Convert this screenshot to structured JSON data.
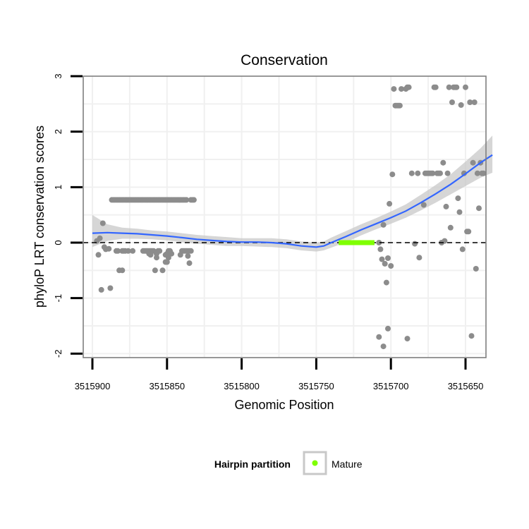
{
  "chart_data": {
    "type": "scatter",
    "title": "Conservation",
    "xlabel": "Genomic Position",
    "ylabel": "phyloP LRT conservation scores",
    "x_reversed": true,
    "xlim": [
      3515905,
      3515642
    ],
    "ylim": [
      -2.05,
      3.0
    ],
    "x_ticks": [
      3515900,
      3515850,
      3515800,
      3515750,
      3515700,
      3515650
    ],
    "y_ticks": [
      -2,
      -1,
      0,
      1,
      2,
      3
    ],
    "grid": true,
    "reference_line": {
      "y": 0,
      "style": "dashed",
      "color": "#000000"
    },
    "colors": {
      "points": "#8c8c8c",
      "smooth_line": "#3366ff",
      "confidence_band": "#c8c8c8",
      "mature": "#7fff00",
      "panel_border": "#7f7f7f",
      "grid": "#f0f0f0"
    },
    "series": [
      {
        "name": "",
        "kind": "points",
        "points": [
          [
            3515897,
            0.03
          ],
          [
            3515896,
            -0.22
          ],
          [
            3515895,
            0.08
          ],
          [
            3515894,
            -0.85
          ],
          [
            3515893,
            0.35
          ],
          [
            3515892,
            -0.08
          ],
          [
            3515891,
            -0.12
          ],
          [
            3515889,
            -0.11
          ],
          [
            3515888,
            -0.82
          ],
          [
            3515887,
            0.77
          ],
          [
            3515886,
            0.77
          ],
          [
            3515885,
            0.77
          ],
          [
            3515884,
            0.77
          ],
          [
            3515883,
            0.77
          ],
          [
            3515882,
            0.77
          ],
          [
            3515881,
            0.77
          ],
          [
            3515880,
            0.77
          ],
          [
            3515879,
            0.77
          ],
          [
            3515878,
            0.77
          ],
          [
            3515877,
            0.77
          ],
          [
            3515876,
            0.77
          ],
          [
            3515875,
            0.77
          ],
          [
            3515874,
            0.77
          ],
          [
            3515873,
            0.77
          ],
          [
            3515872,
            0.77
          ],
          [
            3515871,
            0.77
          ],
          [
            3515870,
            0.77
          ],
          [
            3515869,
            0.77
          ],
          [
            3515868,
            0.77
          ],
          [
            3515867,
            0.77
          ],
          [
            3515866,
            0.77
          ],
          [
            3515865,
            0.77
          ],
          [
            3515864,
            0.77
          ],
          [
            3515863,
            0.77
          ],
          [
            3515862,
            0.77
          ],
          [
            3515861,
            0.77
          ],
          [
            3515860,
            0.77
          ],
          [
            3515859,
            0.77
          ],
          [
            3515858,
            0.77
          ],
          [
            3515857,
            0.77
          ],
          [
            3515856,
            0.77
          ],
          [
            3515855,
            0.77
          ],
          [
            3515854,
            0.77
          ],
          [
            3515853,
            0.77
          ],
          [
            3515852,
            0.77
          ],
          [
            3515851,
            0.77
          ],
          [
            3515850,
            0.77
          ],
          [
            3515849,
            0.77
          ],
          [
            3515848,
            0.77
          ],
          [
            3515847,
            0.77
          ],
          [
            3515846,
            0.77
          ],
          [
            3515845,
            0.77
          ],
          [
            3515844,
            0.77
          ],
          [
            3515843,
            0.77
          ],
          [
            3515842,
            0.77
          ],
          [
            3515841,
            0.77
          ],
          [
            3515840,
            0.77
          ],
          [
            3515839,
            0.77
          ],
          [
            3515838,
            0.77
          ],
          [
            3515837,
            0.77
          ],
          [
            3515834,
            0.77
          ],
          [
            3515833,
            0.77
          ],
          [
            3515832,
            0.77
          ],
          [
            3515884,
            -0.15
          ],
          [
            3515883,
            -0.15
          ],
          [
            3515880,
            -0.15
          ],
          [
            3515879,
            -0.15
          ],
          [
            3515878,
            -0.15
          ],
          [
            3515876,
            -0.15
          ],
          [
            3515873,
            -0.15
          ],
          [
            3515866,
            -0.15
          ],
          [
            3515865,
            -0.15
          ],
          [
            3515864,
            -0.15
          ],
          [
            3515863,
            -0.15
          ],
          [
            3515862,
            -0.15
          ],
          [
            3515861,
            -0.15
          ],
          [
            3515860,
            -0.15
          ],
          [
            3515859,
            -0.15
          ],
          [
            3515856,
            -0.15
          ],
          [
            3515855,
            -0.15
          ],
          [
            3515849,
            -0.15
          ],
          [
            3515848,
            -0.15
          ],
          [
            3515840,
            -0.15
          ],
          [
            3515839,
            -0.15
          ],
          [
            3515838,
            -0.15
          ],
          [
            3515837,
            -0.15
          ],
          [
            3515836,
            -0.15
          ],
          [
            3515835,
            -0.15
          ],
          [
            3515834,
            -0.15
          ],
          [
            3515862,
            -0.2
          ],
          [
            3515861,
            -0.22
          ],
          [
            3515857,
            -0.2
          ],
          [
            3515851,
            -0.22
          ],
          [
            3515850,
            -0.2
          ],
          [
            3515847,
            -0.2
          ],
          [
            3515841,
            -0.22
          ],
          [
            3515849,
            -0.27
          ],
          [
            3515836,
            -0.24
          ],
          [
            3515857,
            -0.27
          ],
          [
            3515851,
            -0.35
          ],
          [
            3515850,
            -0.35
          ],
          [
            3515835,
            -0.37
          ],
          [
            3515882,
            -0.5
          ],
          [
            3515880,
            -0.5
          ],
          [
            3515858,
            -0.5
          ],
          [
            3515853,
            -0.5
          ],
          [
            3515708,
            0.0
          ],
          [
            3515707,
            -0.12
          ],
          [
            3515706,
            -0.3
          ],
          [
            3515705,
            0.32
          ],
          [
            3515704,
            -0.38
          ],
          [
            3515703,
            -0.72
          ],
          [
            3515702,
            -0.28
          ],
          [
            3515701,
            0.7
          ],
          [
            3515700,
            -0.42
          ],
          [
            3515699,
            1.23
          ],
          [
            3515698,
            2.77
          ],
          [
            3515697,
            2.47
          ],
          [
            3515696,
            2.47
          ],
          [
            3515695,
            2.47
          ],
          [
            3515694,
            2.47
          ],
          [
            3515693,
            2.77
          ],
          [
            3515690,
            2.77
          ],
          [
            3515689,
            2.8
          ],
          [
            3515688,
            2.8
          ],
          [
            3515686,
            1.25
          ],
          [
            3515684,
            -0.02
          ],
          [
            3515682,
            1.25
          ],
          [
            3515681,
            -0.27
          ],
          [
            3515678,
            0.68
          ],
          [
            3515677,
            1.25
          ],
          [
            3515676,
            1.25
          ],
          [
            3515675,
            1.25
          ],
          [
            3515674,
            1.25
          ],
          [
            3515673,
            1.25
          ],
          [
            3515672,
            1.25
          ],
          [
            3515671,
            2.8
          ],
          [
            3515670,
            2.8
          ],
          [
            3515669,
            1.25
          ],
          [
            3515668,
            1.25
          ],
          [
            3515667,
            1.25
          ],
          [
            3515666,
            0.0
          ],
          [
            3515665,
            1.44
          ],
          [
            3515664,
            0.03
          ],
          [
            3515663,
            0.65
          ],
          [
            3515662,
            1.25
          ],
          [
            3515661,
            2.8
          ],
          [
            3515660,
            0.27
          ],
          [
            3515659,
            2.53
          ],
          [
            3515658,
            2.8
          ],
          [
            3515657,
            2.8
          ],
          [
            3515656,
            2.8
          ],
          [
            3515655,
            0.8
          ],
          [
            3515654,
            0.55
          ],
          [
            3515653,
            2.48
          ],
          [
            3515652,
            -0.12
          ],
          [
            3515651,
            1.25
          ],
          [
            3515650,
            2.8
          ],
          [
            3515649,
            0.2
          ],
          [
            3515648,
            0.2
          ],
          [
            3515647,
            2.53
          ],
          [
            3515646,
            -1.68
          ],
          [
            3515645,
            1.44
          ],
          [
            3515644,
            2.53
          ],
          [
            3515643,
            -0.47
          ],
          [
            3515642,
            1.25
          ],
          [
            3515641,
            0.62
          ],
          [
            3515640,
            1.44
          ],
          [
            3515639,
            1.25
          ],
          [
            3515638,
            1.25
          ],
          [
            3515708,
            -1.7
          ],
          [
            3515705,
            -1.87
          ],
          [
            3515702,
            -1.55
          ],
          [
            3515689,
            -1.73
          ]
        ]
      },
      {
        "name": "",
        "kind": "smooth",
        "points": [
          [
            3515900,
            0.17
          ],
          [
            3515890,
            0.18
          ],
          [
            3515880,
            0.17
          ],
          [
            3515870,
            0.16
          ],
          [
            3515860,
            0.14
          ],
          [
            3515850,
            0.12
          ],
          [
            3515840,
            0.09
          ],
          [
            3515830,
            0.06
          ],
          [
            3515820,
            0.04
          ],
          [
            3515810,
            0.02
          ],
          [
            3515800,
            0.01
          ],
          [
            3515790,
            0.01
          ],
          [
            3515780,
            0.0
          ],
          [
            3515770,
            -0.02
          ],
          [
            3515760,
            -0.06
          ],
          [
            3515750,
            -0.08
          ],
          [
            3515745,
            -0.06
          ],
          [
            3515740,
            0.0
          ],
          [
            3515730,
            0.11
          ],
          [
            3515720,
            0.23
          ],
          [
            3515710,
            0.34
          ],
          [
            3515700,
            0.45
          ],
          [
            3515690,
            0.57
          ],
          [
            3515680,
            0.72
          ],
          [
            3515670,
            0.88
          ],
          [
            3515660,
            1.05
          ],
          [
            3515650,
            1.24
          ],
          [
            3515640,
            1.44
          ],
          [
            3515632,
            1.58
          ]
        ],
        "lower": [
          [
            3515900,
            -0.08
          ],
          [
            3515890,
            0.03
          ],
          [
            3515880,
            0.07
          ],
          [
            3515870,
            0.07
          ],
          [
            3515860,
            0.06
          ],
          [
            3515850,
            0.04
          ],
          [
            3515840,
            0.01
          ],
          [
            3515830,
            -0.02
          ],
          [
            3515820,
            -0.04
          ],
          [
            3515810,
            -0.06
          ],
          [
            3515800,
            -0.06
          ],
          [
            3515790,
            -0.07
          ],
          [
            3515780,
            -0.08
          ],
          [
            3515770,
            -0.1
          ],
          [
            3515760,
            -0.14
          ],
          [
            3515750,
            -0.16
          ],
          [
            3515745,
            -0.14
          ],
          [
            3515740,
            -0.09
          ],
          [
            3515730,
            0.01
          ],
          [
            3515720,
            0.13
          ],
          [
            3515710,
            0.24
          ],
          [
            3515700,
            0.34
          ],
          [
            3515690,
            0.45
          ],
          [
            3515680,
            0.58
          ],
          [
            3515670,
            0.72
          ],
          [
            3515660,
            0.87
          ],
          [
            3515650,
            1.02
          ],
          [
            3515640,
            1.17
          ],
          [
            3515632,
            1.26
          ]
        ],
        "upper": [
          [
            3515900,
            0.5
          ],
          [
            3515890,
            0.33
          ],
          [
            3515880,
            0.27
          ],
          [
            3515870,
            0.25
          ],
          [
            3515860,
            0.22
          ],
          [
            3515850,
            0.2
          ],
          [
            3515840,
            0.17
          ],
          [
            3515830,
            0.14
          ],
          [
            3515820,
            0.12
          ],
          [
            3515810,
            0.1
          ],
          [
            3515800,
            0.08
          ],
          [
            3515790,
            0.08
          ],
          [
            3515780,
            0.08
          ],
          [
            3515770,
            0.06
          ],
          [
            3515760,
            0.02
          ],
          [
            3515750,
            0.0
          ],
          [
            3515745,
            0.02
          ],
          [
            3515740,
            0.09
          ],
          [
            3515730,
            0.21
          ],
          [
            3515720,
            0.33
          ],
          [
            3515710,
            0.44
          ],
          [
            3515700,
            0.56
          ],
          [
            3515690,
            0.69
          ],
          [
            3515680,
            0.86
          ],
          [
            3515670,
            1.04
          ],
          [
            3515660,
            1.23
          ],
          [
            3515650,
            1.46
          ],
          [
            3515640,
            1.7
          ],
          [
            3515632,
            1.93
          ]
        ]
      },
      {
        "name": "Mature",
        "kind": "segment",
        "x": [
          3515735,
          3515711
        ],
        "y": 0
      }
    ],
    "legend": {
      "title": "Hairpin partition",
      "position": "bottom",
      "entries": [
        {
          "label": "Mature",
          "color": "#7fff00"
        }
      ]
    }
  }
}
